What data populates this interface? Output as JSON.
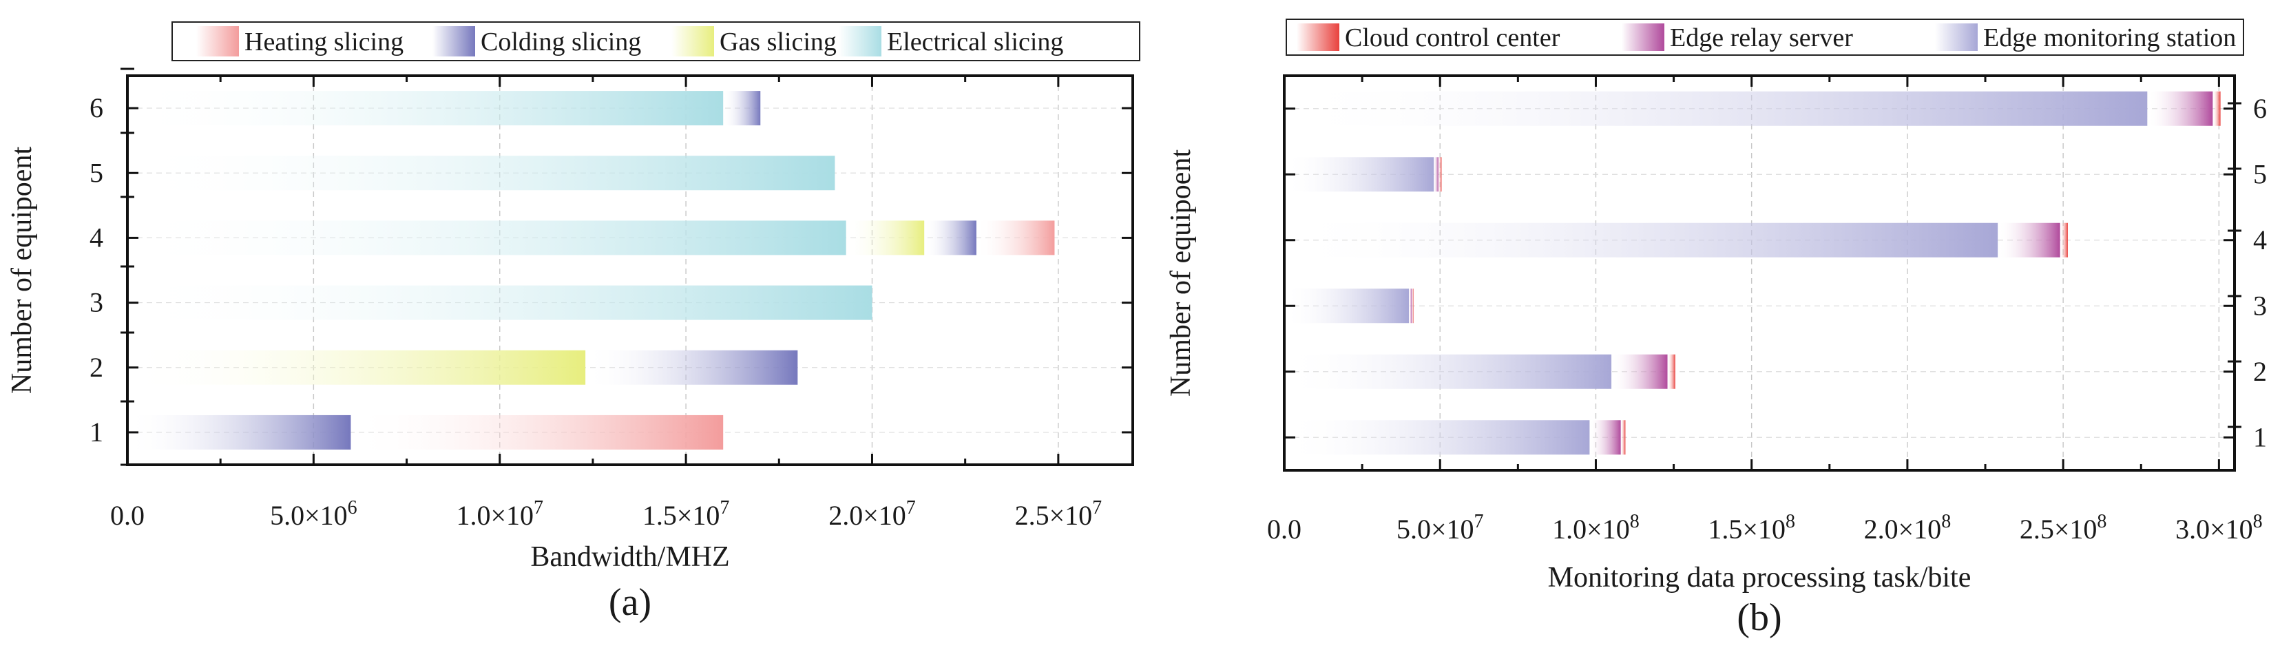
{
  "chart_data": [
    {
      "type": "bar",
      "orientation": "horizontal",
      "stacked": true,
      "panel_label": "(a)",
      "xlabel": "Bandwidth/MHZ",
      "ylabel": "Number of equipoent",
      "xlim": [
        0,
        27000000
      ],
      "x_ticks": [
        {
          "value": 0,
          "base": "0.0",
          "exp": ""
        },
        {
          "value": 5000000,
          "base": "5.0×10",
          "exp": "6"
        },
        {
          "value": 10000000,
          "base": "1.0×10",
          "exp": "7"
        },
        {
          "value": 15000000,
          "base": "1.5×10",
          "exp": "7"
        },
        {
          "value": 20000000,
          "base": "2.0×10",
          "exp": "7"
        },
        {
          "value": 25000000,
          "base": "2.5×10",
          "exp": "7"
        }
      ],
      "categories": [
        "1",
        "2",
        "3",
        "4",
        "5",
        "6"
      ],
      "legend_position": "top",
      "grid": true,
      "series": [
        {
          "name": "Electrical slicing",
          "color": "#a9dde4",
          "values": [
            0,
            0,
            20000000,
            19300000,
            19000000,
            16000000
          ]
        },
        {
          "name": "Gas slicing",
          "color": "#e7ee7e",
          "values": [
            0,
            12300000,
            0,
            2100000,
            0,
            0
          ]
        },
        {
          "name": "Colding slicing",
          "color": "#7678bd",
          "values": [
            6000000,
            5700000,
            0,
            1400000,
            0,
            1000000
          ]
        },
        {
          "name": "Heating slicing",
          "color": "#f39c9c",
          "values": [
            10000000,
            0,
            0,
            2100000,
            0,
            0
          ]
        }
      ],
      "legend_order": [
        "Heating slicing",
        "Colding slicing",
        "Gas slicing",
        "Electrical slicing"
      ]
    },
    {
      "type": "bar",
      "orientation": "horizontal",
      "stacked": true,
      "panel_label": "(b)",
      "xlabel": "Monitoring data processing task/bite",
      "ylabel": "Number of equipoent",
      "xlim": [
        0,
        305000000
      ],
      "x_ticks": [
        {
          "value": 0,
          "base": "0.0",
          "exp": ""
        },
        {
          "value": 50000000,
          "base": "5.0×10",
          "exp": "7"
        },
        {
          "value": 100000000,
          "base": "1.0×10",
          "exp": "8"
        },
        {
          "value": 150000000,
          "base": "1.5×10",
          "exp": "8"
        },
        {
          "value": 200000000,
          "base": "2.0×10",
          "exp": "8"
        },
        {
          "value": 250000000,
          "base": "2.5×10",
          "exp": "8"
        },
        {
          "value": 300000000,
          "base": "3.0×10",
          "exp": "8"
        }
      ],
      "categories": [
        "1",
        "2",
        "3",
        "4",
        "5",
        "6"
      ],
      "legend_position": "top",
      "grid": true,
      "series": [
        {
          "name": "Edge monitoring station",
          "color": "#a7a7d6",
          "values": [
            98000000,
            105000000,
            40000000,
            229000000,
            48000000,
            277000000
          ]
        },
        {
          "name": "Edge relay server",
          "color": "#b04a9c",
          "values": [
            10000000,
            18000000,
            1000000,
            20000000,
            1500000,
            21000000
          ]
        },
        {
          "name": "Cloud control center",
          "color": "#e8413d",
          "values": [
            1500000,
            2500000,
            500000,
            2500000,
            1000000,
            2500000
          ]
        }
      ],
      "legend_order": [
        "Cloud control center",
        "Edge relay server",
        "Edge monitoring station"
      ]
    }
  ]
}
